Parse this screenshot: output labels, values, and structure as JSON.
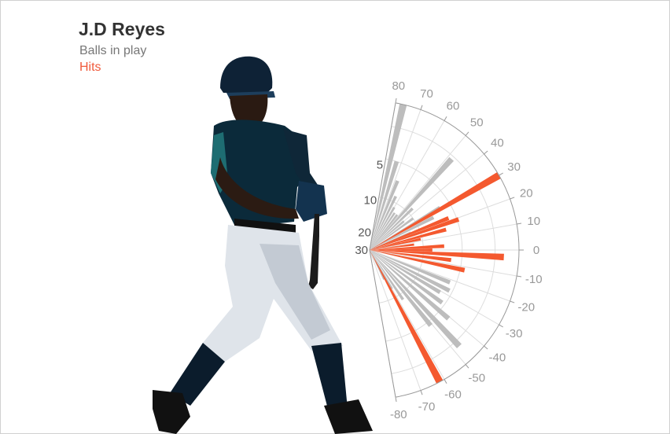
{
  "header": {
    "player_name": "J.D Reyes",
    "legend_balls": "Balls in play",
    "legend_hits": "Hits"
  },
  "colors": {
    "balls_in_play": "#bdbdbd",
    "hits": "#f4592f",
    "axis": "#999999",
    "grid": "#dddddd"
  },
  "icons": {
    "batter_image": "baseball-batter-silhouette"
  },
  "chart_data": {
    "type": "polar-bar",
    "angle_axis": {
      "range": [
        -80,
        80
      ],
      "ticks": [
        80,
        70,
        60,
        50,
        40,
        30,
        20,
        10,
        0,
        -10,
        -20,
        -30,
        -40,
        -50,
        -60,
        -70,
        -80
      ]
    },
    "radial_axis": {
      "ticks": [
        5,
        10,
        20,
        30
      ]
    },
    "series": [
      {
        "name": "Balls in play",
        "bars": [
          {
            "angle": 77,
            "value": 1.0
          },
          {
            "angle": 73,
            "value": 0.62
          },
          {
            "angle": 68,
            "value": 0.5
          },
          {
            "angle": 64,
            "value": 0.4
          },
          {
            "angle": 60,
            "value": 0.33
          },
          {
            "angle": 56,
            "value": 0.3
          },
          {
            "angle": 52,
            "value": 0.3
          },
          {
            "angle": 48,
            "value": 0.82
          },
          {
            "angle": 44,
            "value": 0.4
          },
          {
            "angle": 40,
            "value": 0.3
          },
          {
            "angle": 36,
            "value": 0.36
          },
          {
            "angle": 31,
            "value": 0.55
          },
          {
            "angle": 27,
            "value": 0.48
          },
          {
            "angle": 23,
            "value": 0.3
          },
          {
            "angle": 19,
            "value": 0.35
          },
          {
            "angle": -22,
            "value": 0.58
          },
          {
            "angle": -27,
            "value": 0.6
          },
          {
            "angle": -31,
            "value": 0.55
          },
          {
            "angle": -36,
            "value": 0.6
          },
          {
            "angle": -41,
            "value": 0.7
          },
          {
            "angle": -47,
            "value": 0.88
          },
          {
            "angle": -51,
            "value": 0.65
          },
          {
            "angle": -56,
            "value": 0.4
          },
          {
            "angle": -60,
            "value": 0.3
          },
          {
            "angle": -64,
            "value": 0.22
          }
        ]
      },
      {
        "name": "Hits",
        "bars": [
          {
            "angle": 30,
            "value": 1.0
          },
          {
            "angle": 22,
            "value": 0.57
          },
          {
            "angle": 19,
            "value": 0.63
          },
          {
            "angle": 15,
            "value": 0.53
          },
          {
            "angle": 12,
            "value": 0.35
          },
          {
            "angle": 7,
            "value": 0.3
          },
          {
            "angle": 3,
            "value": 0.5
          },
          {
            "angle": 0,
            "value": 0.42
          },
          {
            "angle": -3,
            "value": 0.9
          },
          {
            "angle": -7,
            "value": 0.55
          },
          {
            "angle": -12,
            "value": 0.65
          },
          {
            "angle": -62,
            "value": 1.0
          }
        ]
      }
    ]
  }
}
